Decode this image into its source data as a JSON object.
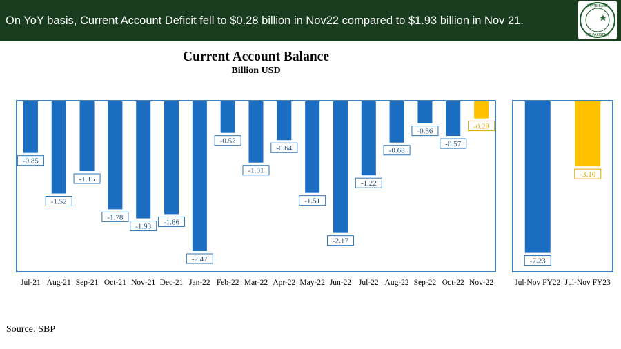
{
  "banner": {
    "text": "On YoY basis, Current Account Deficit fell to $0.28 billion in Nov22 compared to $1.93 billion in Nov 21."
  },
  "logo": {
    "text": "STATE BANK OF PAKISTAN"
  },
  "source": "Source: SBP",
  "colors": {
    "banner_bg": "#1a3c1f",
    "bar_blue": "#1b6dc1",
    "bar_highlight": "#ffc000",
    "frame": "#2e75b6",
    "label_blue": "#1f4e79",
    "label_gold": "#e0a800"
  },
  "chart_data": [
    {
      "type": "bar",
      "title": "Current Account Balance",
      "subtitle": "Billion USD",
      "categories": [
        "Jul-21",
        "Aug-21",
        "Sep-21",
        "Oct-21",
        "Nov-21",
        "Dec-21",
        "Jan-22",
        "Feb-22",
        "Mar-22",
        "Apr-22",
        "May-22",
        "Jun-22",
        "Jul-22",
        "Aug-22",
        "Sep-22",
        "Oct-22",
        "Nov-22"
      ],
      "values": [
        -0.85,
        -1.52,
        -1.15,
        -1.78,
        -1.93,
        -1.86,
        -2.47,
        -0.52,
        -1.01,
        -0.64,
        -1.51,
        -2.17,
        -1.22,
        -0.68,
        -0.36,
        -0.57,
        -0.28
      ],
      "value_labels": [
        "-0.85",
        "-1.52",
        "-1.15",
        "-1.78",
        "-1.93",
        "-1.86",
        "-2.47",
        "-0.52",
        "-1.01",
        "-0.64",
        "-1.51",
        "-2.17",
        "-1.22",
        "-0.68",
        "-0.36",
        "-0.57",
        "-0.28"
      ],
      "highlight": [
        "Nov-22"
      ],
      "ylim": [
        -2.8,
        0
      ],
      "grid": false,
      "legend": "none"
    },
    {
      "type": "bar",
      "categories": [
        "Jul-Nov FY22",
        "Jul-Nov FY23"
      ],
      "values": [
        -7.23,
        -3.1
      ],
      "value_labels": [
        "-7.23",
        "-3.10"
      ],
      "highlight": [
        "Jul-Nov FY23"
      ],
      "ylim": [
        -8.1,
        0
      ],
      "grid": false,
      "legend": "none"
    }
  ]
}
